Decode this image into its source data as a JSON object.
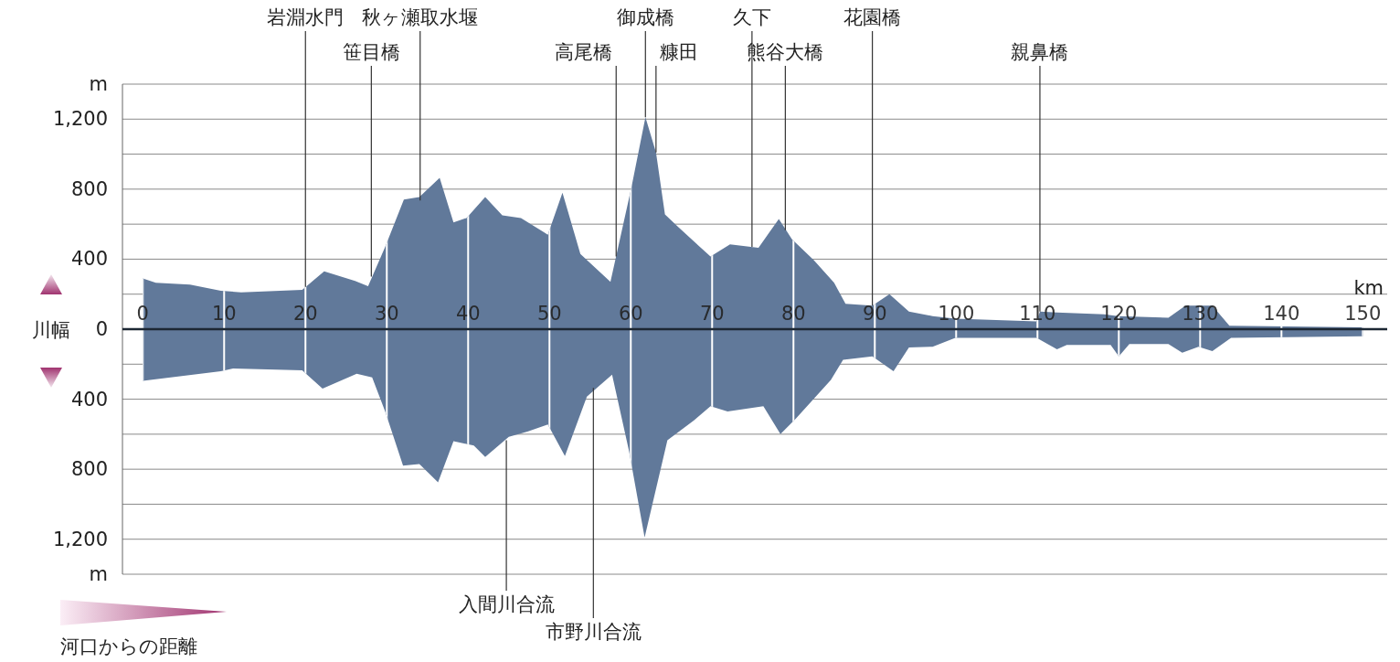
{
  "chart_data": {
    "type": "area",
    "xlabel": "河口からの距離",
    "ylabel": "川幅",
    "xlim": [
      -2.5,
      153
    ],
    "ylim": [
      -1400,
      1400
    ],
    "xticks": [
      0,
      10,
      20,
      30,
      40,
      50,
      60,
      70,
      80,
      90,
      100,
      110,
      120,
      130,
      140,
      150
    ],
    "yticks": [
      {
        "value": -1400,
        "label": "m"
      },
      {
        "value": -1200,
        "label": "1,200"
      },
      {
        "value": -1000,
        "label": null
      },
      {
        "value": -800,
        "label": "800"
      },
      {
        "value": -600,
        "label": null
      },
      {
        "value": -400,
        "label": "400"
      },
      {
        "value": -200,
        "label": null
      },
      {
        "value": 0,
        "label": "0"
      },
      {
        "value": 200,
        "label": null
      },
      {
        "value": 400,
        "label": "400"
      },
      {
        "value": 600,
        "label": null
      },
      {
        "value": 800,
        "label": "800"
      },
      {
        "value": 1000,
        "label": null
      },
      {
        "value": 1200,
        "label": "1,200"
      },
      {
        "value": 1400,
        "label": "m"
      }
    ],
    "grid": true,
    "series": [
      {
        "color": "#61799a",
        "x": [
          0,
          1.6,
          5.8,
          9.6,
          12.1,
          19.6,
          22.3,
          26.1,
          27.7,
          29.8,
          32.1,
          34.0,
          36.5,
          38.2,
          39.8,
          42.1,
          44.2,
          46.5,
          49.8,
          51.6,
          53.8,
          57.5,
          60.1,
          61.8,
          63.1,
          64.2,
          65.8,
          69.8,
          72.2,
          75.7,
          78.2,
          79.8,
          82.5,
          85.0,
          86.4,
          89.7,
          91.8,
          94.2,
          97.1,
          99.9,
          109.9,
          110.3,
          112.4,
          118.2,
          119.9,
          126.1,
          128.2,
          131.5,
          133.6,
          150
        ],
        "values": [
          290,
          265,
          255,
          220,
          210,
          225,
          330,
          275,
          245,
          470,
          740,
          755,
          865,
          610,
          635,
          755,
          650,
          635,
          540,
          780,
          430,
          270,
          815,
          1210,
          1010,
          655,
          585,
          415,
          485,
          465,
          630,
          515,
          395,
          265,
          145,
          135,
          200,
          100,
          75,
          60,
          45,
          100,
          95,
          85,
          75,
          65,
          135,
          135,
          20,
          10
        ]
      },
      {
        "color": "#61799a",
        "x": [
          0,
          9.6,
          11.1,
          19.6,
          22.1,
          26.3,
          28.2,
          29.8,
          32.0,
          34.0,
          36.3,
          38.2,
          40.7,
          42.1,
          45.0,
          47.3,
          49.8,
          51.9,
          54.6,
          57.7,
          59.8,
          61.7,
          64.5,
          67.8,
          69.8,
          71.9,
          76.3,
          78.4,
          80.3,
          84.6,
          86.1,
          89.7,
          92.3,
          94.2,
          97.1,
          99.9,
          109.9,
          112.4,
          113.6,
          119.0,
          120.0,
          121.3,
          126.1,
          127.8,
          129.8,
          131.5,
          133.8,
          150
        ],
        "values": [
          -295,
          -240,
          -225,
          -235,
          -340,
          -255,
          -275,
          -470,
          -780,
          -770,
          -875,
          -640,
          -665,
          -730,
          -615,
          -585,
          -545,
          -725,
          -385,
          -260,
          -700,
          -1190,
          -635,
          -520,
          -440,
          -470,
          -440,
          -600,
          -510,
          -290,
          -175,
          -155,
          -240,
          -105,
          -100,
          -50,
          -50,
          -115,
          -90,
          -90,
          -155,
          -85,
          -85,
          -135,
          -100,
          -125,
          -50,
          -40
        ]
      }
    ],
    "annotations": [
      {
        "text": "岩淵水門",
        "x": 20.0,
        "y": 241
      },
      {
        "text": "笹目橋",
        "x": 28.1,
        "y": 300
      },
      {
        "text": "秋ヶ瀬取水堰",
        "x": 34.1,
        "y": 735
      },
      {
        "text": "高尾橋",
        "x": 58.2,
        "y": 415
      },
      {
        "text": "御成橋",
        "x": 61.8,
        "y": 1210
      },
      {
        "text": "糠田",
        "x": 63.1,
        "y": 1010
      },
      {
        "text": "久下",
        "x": 74.9,
        "y": 470
      },
      {
        "text": "熊谷大橋",
        "x": 79.0,
        "y": 565
      },
      {
        "text": "花園橋",
        "x": 89.7,
        "y": 135
      },
      {
        "text": "親鼻橋",
        "x": 110.3,
        "y": 100
      },
      {
        "text": "入間川合流",
        "x": 44.7,
        "y": -635
      },
      {
        "text": "市野川合流",
        "x": 55.4,
        "y": -335
      },
      "km"
    ]
  }
}
